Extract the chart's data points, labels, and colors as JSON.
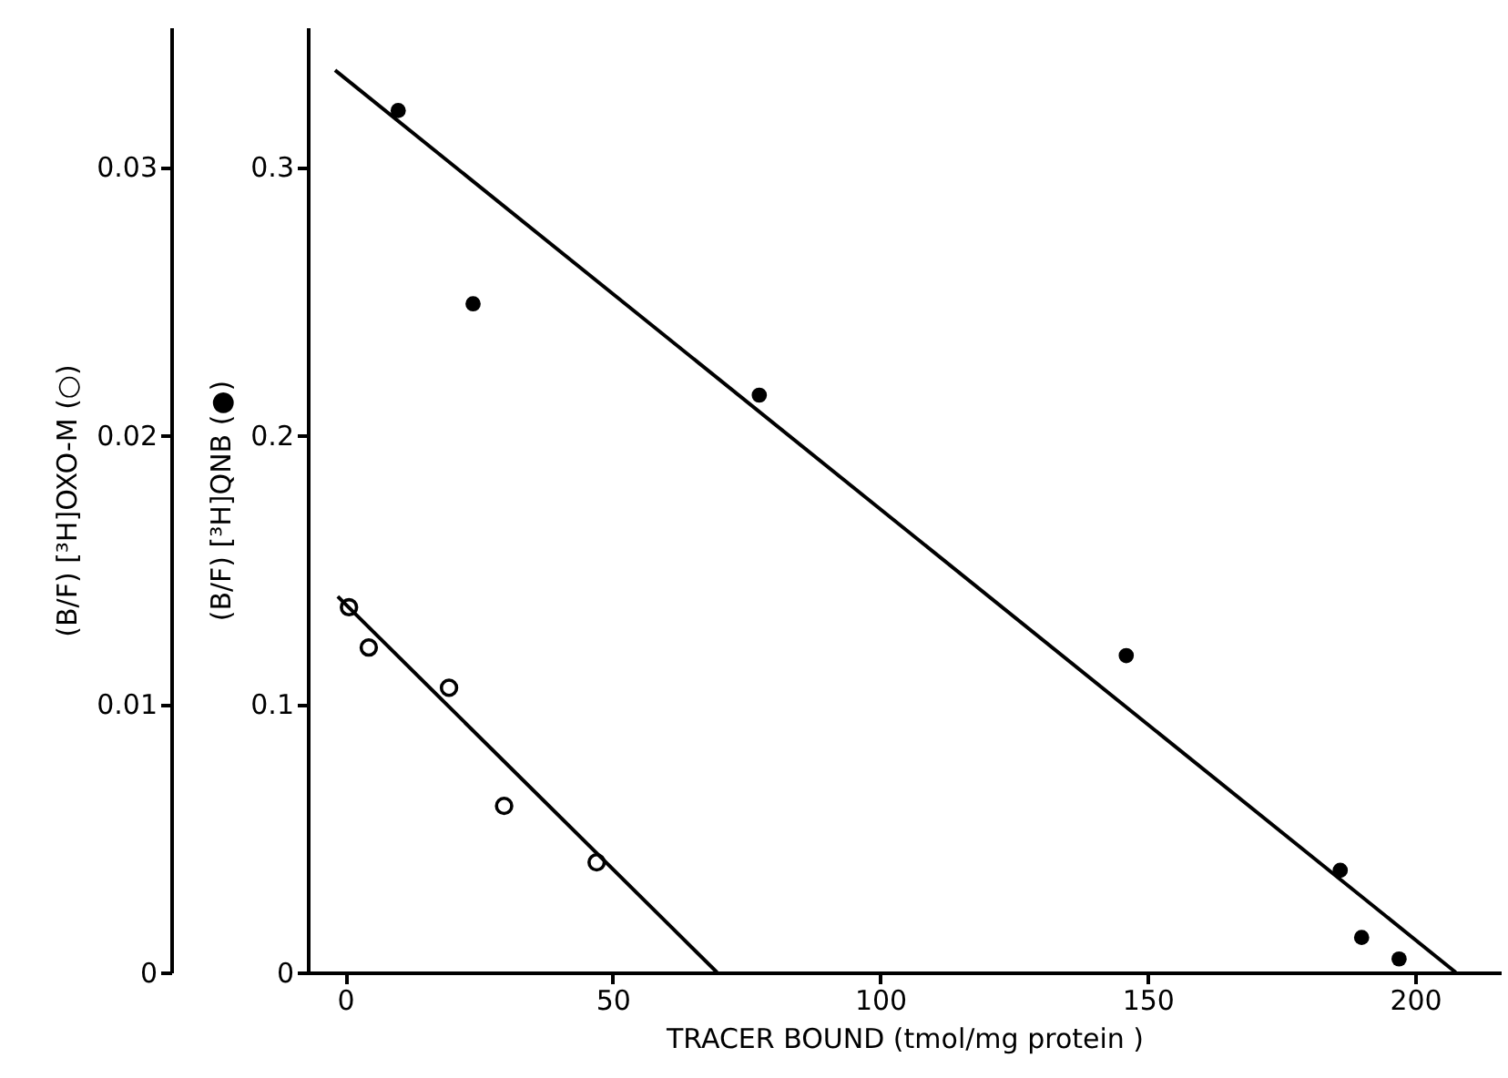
{
  "chart_data": {
    "type": "scatter",
    "xlabel": "TRACER BOUND (tmol/mg protein )",
    "ylabel": "(B/F) [³H]QNB (●)",
    "y2label": "(B/F) [³H]OXO-M (○)",
    "xlim": [
      -7,
      216
    ],
    "xticks": [
      0,
      50,
      100,
      150,
      200
    ],
    "ylim": [
      0,
      0.352
    ],
    "yticks": [
      0,
      0.1,
      0.2,
      0.3
    ],
    "y2lim": [
      0,
      0.0352
    ],
    "y2ticks": [
      0,
      0.01,
      0.02,
      0.03
    ],
    "grid": false,
    "series": [
      {
        "axis": "y",
        "marker": "circle",
        "color": "#000000",
        "x": [
          9.9,
          23.9,
          77.4,
          146,
          186,
          190,
          197
        ],
        "values": [
          0.321,
          0.249,
          0.215,
          0.118,
          0.038,
          0.013,
          0.005
        ]
      },
      {
        "type": "line",
        "axis": "y",
        "marker": "none",
        "color": "#000000",
        "line_style": "solid",
        "x": [
          -1.9,
          207.6
        ],
        "values": [
          0.336,
          0
        ]
      },
      {
        "axis": "y2",
        "marker": "circle",
        "color": "#000000",
        "x": [
          0.7,
          4.4,
          19.4,
          29.7,
          47
        ],
        "values": [
          0.0136,
          0.0121,
          0.0106,
          0.0062,
          0.0041
        ]
      },
      {
        "type": "line",
        "axis": "y2",
        "marker": "none",
        "color": "#000000",
        "line_style": "solid",
        "x": [
          -1.4,
          69.5
        ],
        "values": [
          0.014,
          0
        ]
      }
    ]
  }
}
